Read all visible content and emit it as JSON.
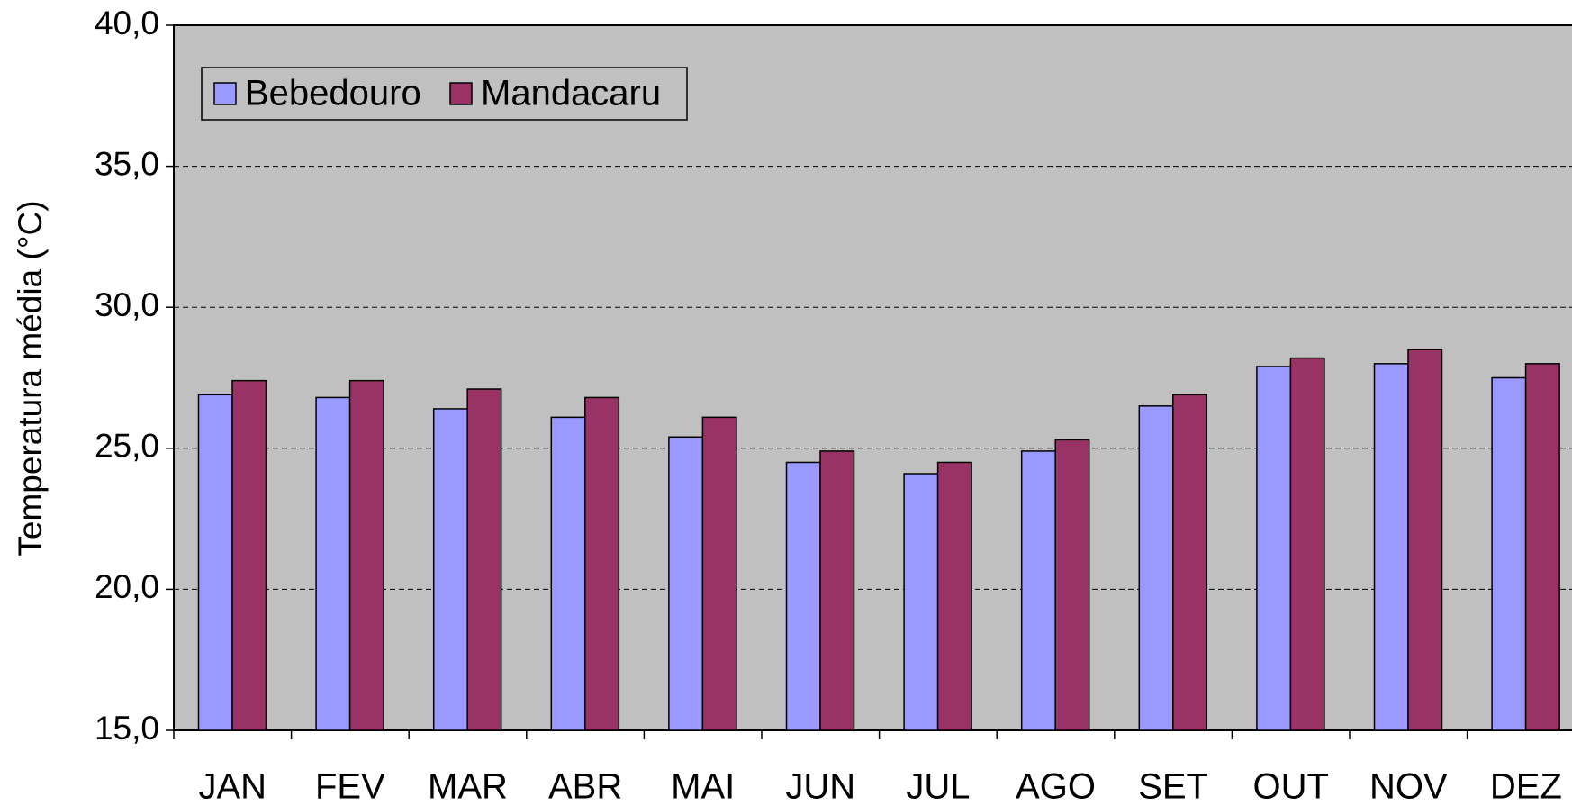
{
  "chart_data": {
    "type": "bar",
    "y_label": "Temperatura média (°C)",
    "categories": [
      "JAN",
      "FEV",
      "MAR",
      "ABR",
      "MAI",
      "JUN",
      "JUL",
      "AGO",
      "SET",
      "OUT",
      "NOV",
      "DEZ"
    ],
    "series": [
      {
        "name": "Bebedouro",
        "color": "#9999ff",
        "values": [
          26.9,
          26.8,
          26.4,
          26.1,
          25.4,
          24.5,
          24.1,
          24.9,
          26.5,
          27.9,
          28.0,
          27.5
        ]
      },
      {
        "name": "Mandacaru",
        "color": "#993366",
        "values": [
          27.4,
          27.4,
          27.1,
          26.8,
          26.1,
          24.9,
          24.5,
          25.3,
          26.9,
          28.2,
          28.5,
          28.0
        ]
      }
    ],
    "ylim": [
      15,
      40
    ],
    "yticks": [
      {
        "value": 15,
        "label": "15,0"
      },
      {
        "value": 20,
        "label": "20,0"
      },
      {
        "value": 25,
        "label": "25,0"
      },
      {
        "value": 30,
        "label": "30,0"
      },
      {
        "value": 35,
        "label": "35,0"
      },
      {
        "value": 40,
        "label": "40,0"
      }
    ],
    "grid": true,
    "legend": "top-left",
    "background": "#c0c0c0"
  }
}
